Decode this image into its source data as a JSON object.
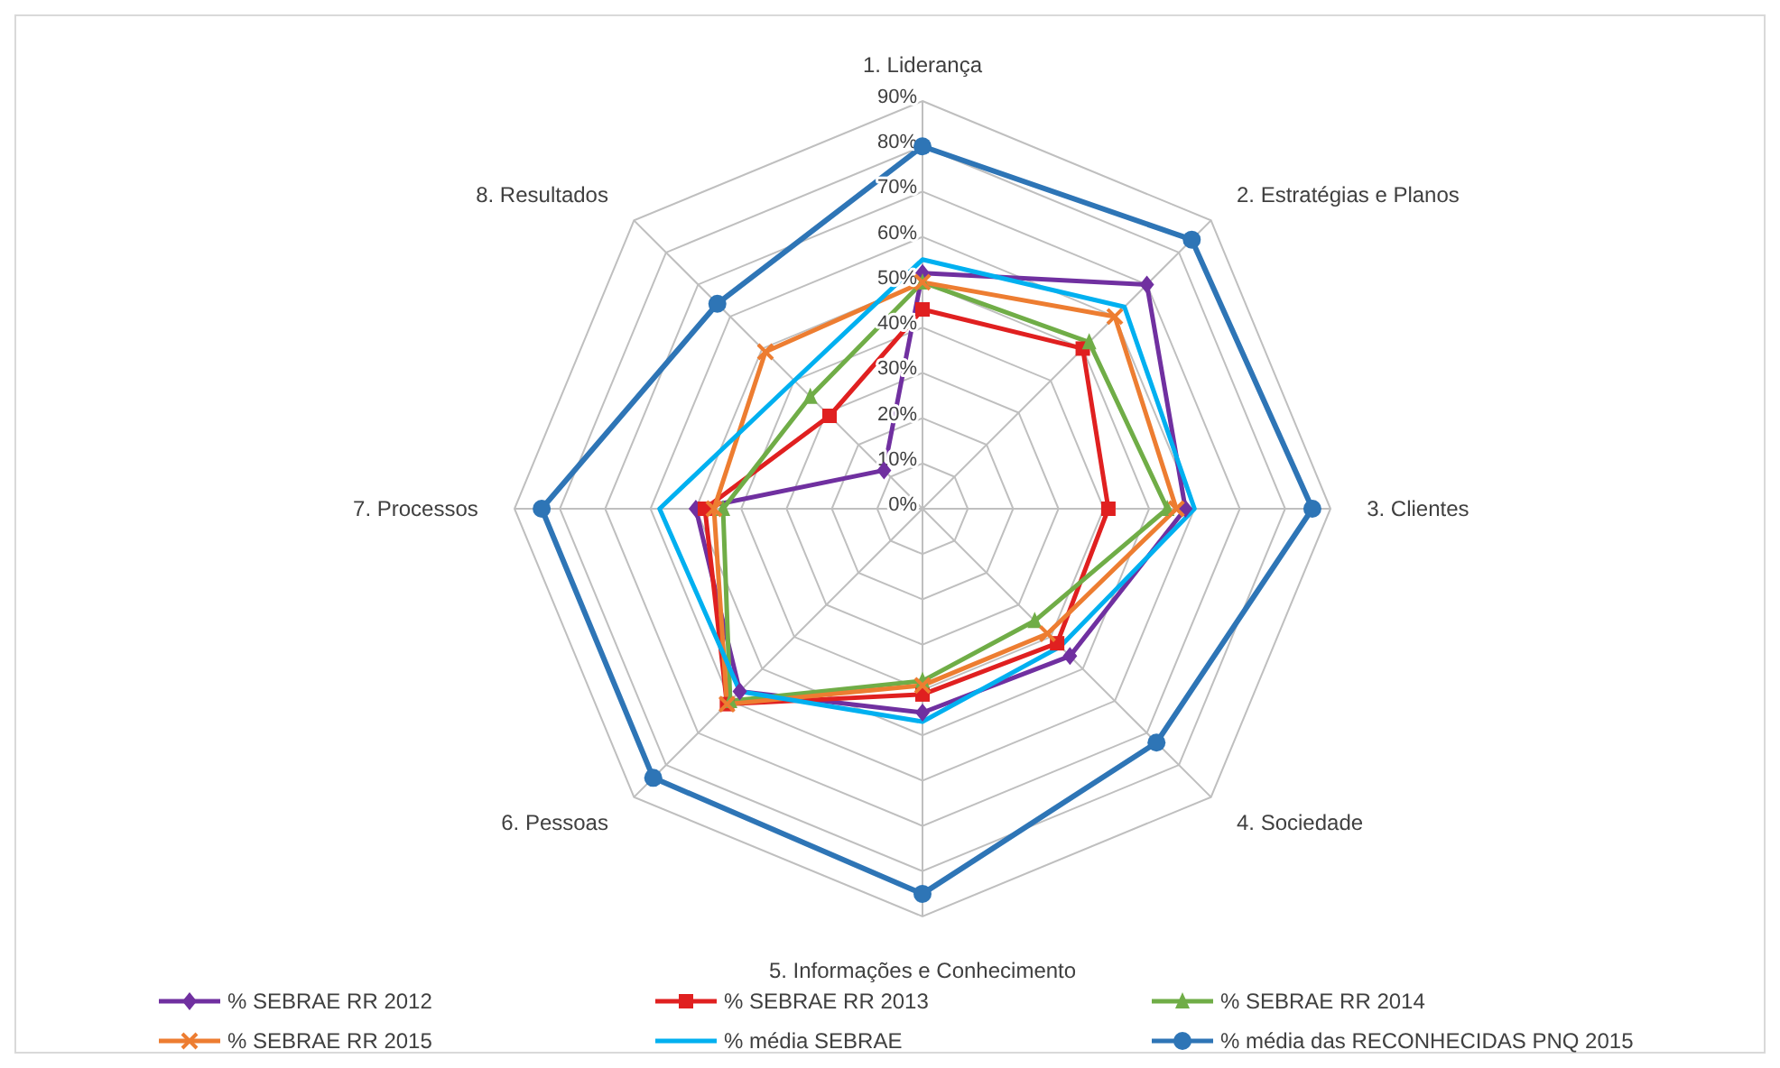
{
  "chart_data": {
    "type": "radar",
    "categories": [
      "1.  Liderança",
      "2. Estratégias e Planos",
      "3. Clientes",
      "4. Sociedade",
      "5. Informações e Conhecimento",
      "6. Pessoas",
      "7. Processos",
      "8. Resultados"
    ],
    "ylim": [
      0,
      90
    ],
    "yticks": [
      {
        "value": 0,
        "label": "0%"
      },
      {
        "value": 10,
        "label": "10%"
      },
      {
        "value": 20,
        "label": "20%"
      },
      {
        "value": 30,
        "label": "30%"
      },
      {
        "value": 40,
        "label": "40%"
      },
      {
        "value": 50,
        "label": "50%"
      },
      {
        "value": 60,
        "label": "60%"
      },
      {
        "value": 70,
        "label": "70%"
      },
      {
        "value": 80,
        "label": "80%"
      },
      {
        "value": 90,
        "label": "90%"
      }
    ],
    "grid": true,
    "legend": "bottom",
    "line_style": "solid",
    "series": [
      {
        "name": "% SEBRAE RR 2012",
        "color": "#7030a0",
        "marker": "diamond",
        "values": [
          52,
          70,
          58,
          46,
          45,
          57,
          50,
          12
        ]
      },
      {
        "name": "% SEBRAE RR 2013",
        "color": "#e02020",
        "marker": "square",
        "values": [
          44,
          50,
          41,
          42,
          41,
          61,
          48,
          29
        ]
      },
      {
        "name": "% SEBRAE RR 2014",
        "color": "#70ad47",
        "marker": "triangle",
        "values": [
          50,
          52,
          54,
          35,
          38,
          60,
          44,
          35
        ]
      },
      {
        "name": "% SEBRAE RR 2015",
        "color": "#ed7d31",
        "marker": "cross",
        "values": [
          50,
          60,
          56,
          39,
          39,
          61,
          46,
          49
        ]
      },
      {
        "name": "% média SEBRAE",
        "color": "#00b0f0",
        "marker": "none",
        "values": [
          55,
          63,
          60,
          43,
          47,
          57,
          58,
          40
        ]
      },
      {
        "name": "% média das  RECONHECIDAS PNQ 2015",
        "color": "#2e75b6",
        "marker": "circle",
        "values": [
          80,
          84,
          86,
          73,
          85,
          84,
          84,
          64
        ]
      }
    ]
  }
}
